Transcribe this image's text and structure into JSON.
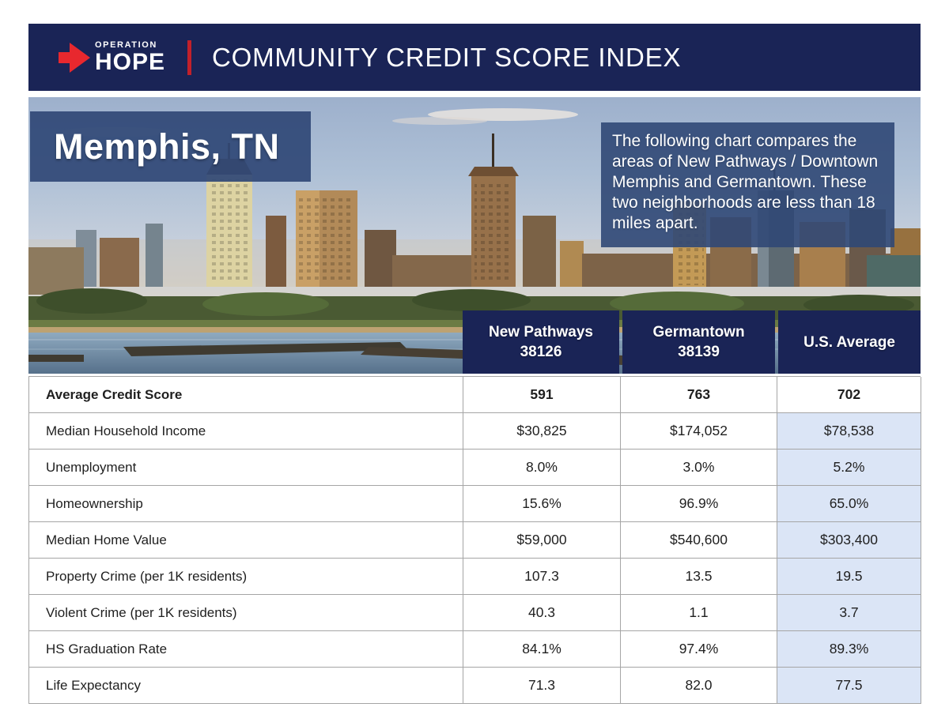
{
  "brand": {
    "operation": "OPERATION",
    "hope": "HOPE"
  },
  "header": {
    "title": "COMMUNITY CREDIT SCORE INDEX"
  },
  "hero": {
    "city": "Memphis, TN",
    "description": "The following chart compares the areas of New Pathways / Downtown Memphis and Germantown. These two neighborhoods are less than 18 miles apart."
  },
  "chart_data": {
    "type": "table",
    "title": "COMMUNITY CREDIT SCORE INDEX",
    "subtitle": "Memphis, TN",
    "columns": [
      {
        "name": "New Pathways",
        "sub": "38126"
      },
      {
        "name": "Germantown",
        "sub": "38139"
      },
      {
        "name": "U.S. Average",
        "sub": ""
      }
    ],
    "rows": [
      {
        "label": "Average Credit Score",
        "values": [
          "591",
          "763",
          "702"
        ],
        "bold": true,
        "us_highlight": false
      },
      {
        "label": "Median Household Income",
        "values": [
          "$30,825",
          "$174,052",
          "$78,538"
        ],
        "bold": false,
        "us_highlight": true
      },
      {
        "label": "Unemployment",
        "values": [
          "8.0%",
          "3.0%",
          "5.2%"
        ],
        "bold": false,
        "us_highlight": true
      },
      {
        "label": "Homeownership",
        "values": [
          "15.6%",
          "96.9%",
          "65.0%"
        ],
        "bold": false,
        "us_highlight": true
      },
      {
        "label": "Median Home Value",
        "values": [
          "$59,000",
          "$540,600",
          "$303,400"
        ],
        "bold": false,
        "us_highlight": true
      },
      {
        "label": "Property Crime (per 1K residents)",
        "values": [
          "107.3",
          "13.5",
          "19.5"
        ],
        "bold": false,
        "us_highlight": true
      },
      {
        "label": "Violent Crime (per 1K residents)",
        "values": [
          "40.3",
          "1.1",
          "3.7"
        ],
        "bold": false,
        "us_highlight": true
      },
      {
        "label": "HS Graduation Rate",
        "values": [
          "84.1%",
          "97.4%",
          "89.3%"
        ],
        "bold": false,
        "us_highlight": true
      },
      {
        "label": "Life Expectancy",
        "values": [
          "71.3",
          "82.0",
          "77.5"
        ],
        "bold": false,
        "us_highlight": true
      }
    ]
  },
  "colors": {
    "navy": "#1a2456",
    "arrow_red": "#e8282e",
    "divider_red": "#c2202a",
    "panel_blue": "#304876",
    "highlight_cell": "#dbe5f6",
    "table_border": "#a5a5a5"
  }
}
